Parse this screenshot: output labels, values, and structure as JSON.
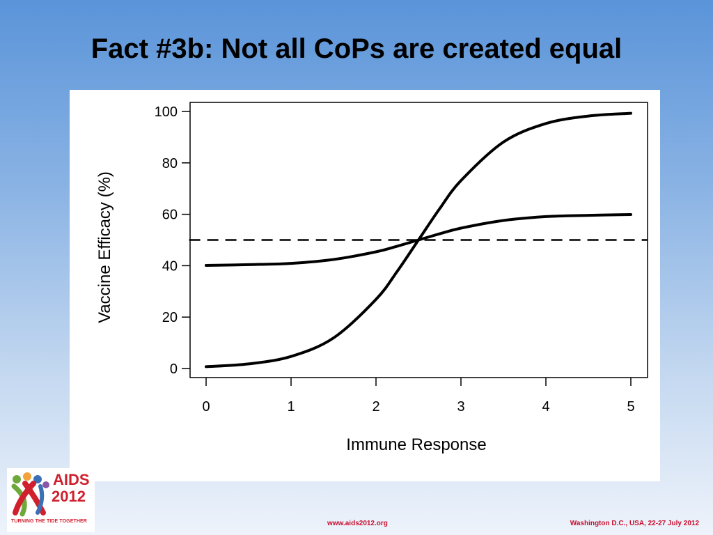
{
  "slide": {
    "title": "Fact #3b: Not all CoPs are created equal"
  },
  "footer": {
    "url": "www.aids2012.org",
    "place_date": "Washington D.C., USA, 22-27 July 2012"
  },
  "logo": {
    "word": "AIDS",
    "year": "2012",
    "tagline": "TURNING THE TIDE TOGETHER",
    "colors": [
      "#d0202e",
      "#6fa83a",
      "#f2a33a",
      "#3b6fb6",
      "#8a57a6"
    ]
  },
  "chart_data": {
    "type": "line",
    "title": "",
    "xlabel": "Immune Response",
    "ylabel": "Vaccine Efficacy (%)",
    "xlim": [
      0,
      5
    ],
    "ylim": [
      0,
      100
    ],
    "xticks": [
      0,
      1,
      2,
      3,
      4,
      5
    ],
    "yticks": [
      0,
      20,
      40,
      60,
      80,
      100
    ],
    "grid": false,
    "legend": "none",
    "series": [
      {
        "style": "solid",
        "x": [
          0,
          0.5,
          1,
          1.5,
          2,
          2.25,
          2.5,
          2.75,
          3,
          3.5,
          4,
          4.5,
          5
        ],
        "y": [
          0.7,
          1.8,
          4.7,
          11.9,
          26.9,
          37.8,
          50,
          62.2,
          73.1,
          88.1,
          95.3,
          98.2,
          99.3
        ]
      },
      {
        "style": "solid",
        "x": [
          0,
          0.5,
          1,
          1.5,
          2,
          2.25,
          2.5,
          2.75,
          3,
          3.5,
          4,
          4.5,
          5
        ],
        "y": [
          40.1,
          40.4,
          40.9,
          42.4,
          45.4,
          47.6,
          50,
          52.4,
          54.6,
          57.6,
          59.1,
          59.6,
          59.9
        ]
      },
      {
        "style": "dashed",
        "x": [
          -0.2,
          5.2
        ],
        "y": [
          50,
          50
        ]
      }
    ]
  }
}
